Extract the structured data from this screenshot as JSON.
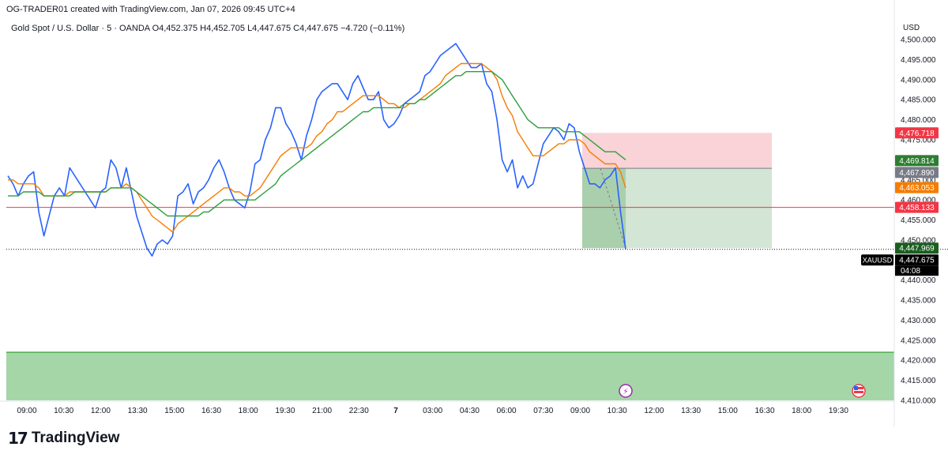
{
  "header": {
    "created_by": "OG-TRADER01 created with TradingView.com, Jan 07, 2026 09:45 UTC+4"
  },
  "symbol": {
    "name": "Gold Spot / U.S. Dollar",
    "interval": "5",
    "exchange": "OANDA",
    "ohlc_text": "O4,452.375 H4,452.705 L4,447.675 C4,447.675 −4.720 (−0.11%)"
  },
  "currency": "USD",
  "footer": {
    "brand": "TradingView"
  },
  "chart_data": {
    "type": "line",
    "xlabel": "",
    "ylabel": "",
    "ylim": [
      4410,
      4501
    ],
    "grid": false,
    "x_tick_labels": [
      "09:00",
      "10:30",
      "12:00",
      "13:30",
      "15:00",
      "16:30",
      "18:00",
      "19:30",
      "21:00",
      "22:30",
      "7",
      "03:00",
      "04:30",
      "06:00",
      "07:30",
      "09:00",
      "10:30",
      "12:00",
      "13:30",
      "15:00",
      "16:30",
      "18:00",
      "19:30"
    ],
    "y_tick_values": [
      4410,
      4415,
      4420,
      4425,
      4430,
      4435,
      4440,
      4445,
      4450,
      4455,
      4460,
      4465,
      4470,
      4475,
      4480,
      4485,
      4490,
      4495,
      4500
    ],
    "y_tick_labels": [
      "4,410.000",
      "4,415.000",
      "4,420.000",
      "4,425.000",
      "4,430.000",
      "4,435.000",
      "4,440.000",
      "4,445.000",
      "4,450.000",
      "4,455.000",
      "4,460.000",
      "4,465.000",
      "4,470.000",
      "4,475.000",
      "4,480.000",
      "4,485.000",
      "4,490.000",
      "4,495.000",
      "4,500.000"
    ],
    "series": [
      {
        "values": [
          4466,
          4464,
          4461,
          4464,
          4466,
          4467,
          4457,
          4451,
          4456,
          4461,
          4463,
          4461,
          4468,
          4466,
          4464,
          4462,
          4460,
          4458,
          4462,
          4463,
          4470,
          4468,
          4463,
          4468,
          4462,
          4456,
          4452,
          4448,
          4446,
          4449,
          4450,
          4449,
          4451,
          4461,
          4462,
          4464,
          4459,
          4462,
          4463,
          4465,
          4468,
          4470,
          4467,
          4463,
          4460,
          4459,
          4458,
          4462,
          4469,
          4470,
          4475,
          4478,
          4483,
          4483,
          4479,
          4477,
          4474,
          4470,
          4476,
          4480,
          4485,
          4487,
          4488,
          4489,
          4489,
          4487,
          4485,
          4489,
          4491,
          4488,
          4485,
          4485,
          4487,
          4480,
          4478,
          4479,
          4481,
          4484,
          4485,
          4486,
          4487,
          4491,
          4492,
          4494,
          4496,
          4497,
          4498,
          4499,
          4497,
          4495,
          4493,
          4493,
          4494,
          4489,
          4487,
          4480,
          4470,
          4467,
          4470,
          4463,
          4466,
          4463,
          4464,
          4469,
          4474,
          4476,
          4478,
          4477,
          4475,
          4479,
          4478,
          4472,
          4468,
          4464,
          4464,
          4463,
          4465,
          4466,
          4468,
          4457,
          4447.675
        ],
        "color": "#2962ff"
      },
      {
        "values": [
          4465,
          4465,
          4464,
          4464,
          4464,
          4464,
          4463,
          4461,
          4461,
          4461,
          4461,
          4461,
          4462,
          4462,
          4462,
          4462,
          4462,
          4462,
          4462,
          4462,
          4463,
          4463,
          4463,
          4464,
          4463,
          4462,
          4460,
          4458,
          4456,
          4455,
          4454,
          4453,
          4452,
          4454,
          4455,
          4456,
          4457,
          4458,
          4459,
          4460,
          4461,
          4462,
          4463,
          4463,
          4462,
          4462,
          4461,
          4461,
          4462,
          4463,
          4465,
          4467,
          4469,
          4471,
          4472,
          4473,
          4473,
          4473,
          4473,
          4474,
          4476,
          4477,
          4479,
          4480,
          4482,
          4482,
          4483,
          4484,
          4485,
          4486,
          4486,
          4486,
          4486,
          4485,
          4484,
          4484,
          4483,
          4483,
          4484,
          4484,
          4485,
          4486,
          4487,
          4488,
          4489,
          4491,
          4492,
          4493,
          4494,
          4494,
          4494,
          4494,
          4494,
          4493,
          4492,
          4490,
          4486,
          4483,
          4481,
          4477,
          4475,
          4473,
          4471,
          4471,
          4471,
          4472,
          4473,
          4474,
          4474,
          4475,
          4475,
          4475,
          4474,
          4472,
          4471,
          4470,
          4469,
          4469,
          4469,
          4467,
          4463
        ],
        "color": "#f57c00"
      },
      {
        "values": [
          4461,
          4461,
          4461,
          4462,
          4462,
          4462,
          4462,
          4461,
          4461,
          4461,
          4461,
          4461,
          4461,
          4462,
          4462,
          4462,
          4462,
          4462,
          4462,
          4462,
          4463,
          4463,
          4463,
          4463,
          4463,
          4462,
          4461,
          4460,
          4459,
          4458,
          4457,
          4456,
          4456,
          4456,
          4456,
          4456,
          4456,
          4456,
          4457,
          4457,
          4458,
          4459,
          4460,
          4460,
          4460,
          4460,
          4460,
          4460,
          4460,
          4461,
          4462,
          4463,
          4464,
          4466,
          4467,
          4468,
          4469,
          4470,
          4471,
          4472,
          4473,
          4474,
          4475,
          4476,
          4477,
          4478,
          4479,
          4480,
          4481,
          4482,
          4482,
          4483,
          4483,
          4483,
          4483,
          4483,
          4483,
          4484,
          4484,
          4484,
          4485,
          4485,
          4486,
          4487,
          4488,
          4489,
          4490,
          4491,
          4491,
          4492,
          4492,
          4492,
          4492,
          4492,
          4492,
          4491,
          4490,
          4488,
          4486,
          4484,
          4482,
          4480,
          4479,
          4478,
          4478,
          4478,
          4478,
          4478,
          4477,
          4477,
          4477,
          4477,
          4476,
          4475,
          4474,
          4473,
          4472,
          4472,
          4472,
          4471,
          4470
        ],
        "color": "#2e9e3e"
      }
    ],
    "horizontal_lines": [
      {
        "value": 4458.133,
        "color": "#f23645"
      },
      {
        "value": 4447.675,
        "color": "#131722",
        "style": "dotted"
      }
    ],
    "price_labels": [
      {
        "text": "4,476.718",
        "value": 4476.718,
        "color": "#f23645"
      },
      {
        "text": "4,469.814",
        "value": 4469.814,
        "color": "#2e7d32"
      },
      {
        "text": "4,467.890",
        "value": 4467.89,
        "color": "#787b86"
      },
      {
        "text": "4,463.053",
        "value": 4463.053,
        "color": "#f57c00"
      },
      {
        "text": "4,458.133",
        "value": 4458.133,
        "color": "#f23645"
      },
      {
        "text": "4,447.969",
        "value": 4447.969,
        "color": "#1b5e20"
      },
      {
        "text": "4,447.675",
        "value": 4447.675,
        "color": "#000000"
      }
    ],
    "countdown": "04:08",
    "symbol_tag": "XAUUSD",
    "short_position": {
      "entry": 4467.89,
      "stop": 4476.718,
      "target": 4447.969
    },
    "demand_zone": {
      "from": 4410,
      "to": 4422
    }
  }
}
